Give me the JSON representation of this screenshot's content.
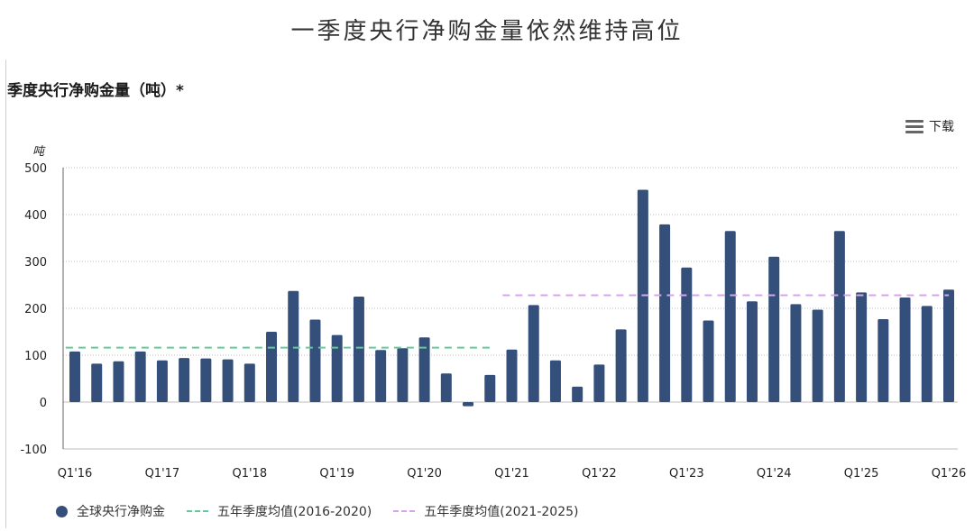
{
  "page": {
    "title": "一季度央行净购金量依然维持高位",
    "subtitle": "季度央行净购金量（吨）*",
    "download_label": "下载",
    "download_icon": "menu-icon"
  },
  "colors": {
    "bar": "#34507a",
    "avg_2016_2020": "#66c99a",
    "avg_2021_2025": "#d7a4ec",
    "grid": "#bdbdbd",
    "axis": "#666666"
  },
  "chart_data": {
    "type": "bar",
    "unit_label": "吨",
    "ylim": [
      -100,
      500
    ],
    "yticks": [
      -100,
      0,
      100,
      200,
      300,
      400,
      500
    ],
    "grid": true,
    "legend_position": "bottom-left",
    "categories": [
      "Q1'16",
      "Q2'16",
      "Q3'16",
      "Q4'16",
      "Q1'17",
      "Q2'17",
      "Q3'17",
      "Q4'17",
      "Q1'18",
      "Q2'18",
      "Q3'18",
      "Q4'18",
      "Q1'19",
      "Q2'19",
      "Q3'19",
      "Q4'19",
      "Q1'20",
      "Q2'20",
      "Q3'20",
      "Q4'20",
      "Q1'21",
      "Q2'21",
      "Q3'21",
      "Q4'21",
      "Q1'22",
      "Q2'22",
      "Q3'22",
      "Q4'22",
      "Q1'23",
      "Q2'23",
      "Q3'23",
      "Q4'23",
      "Q1'24",
      "Q2'24",
      "Q3'24",
      "Q4'24",
      "Q1'25",
      "Q2'25",
      "Q3'25",
      "Q4'25",
      "Q1'26"
    ],
    "x_tick_labels": [
      {
        "index": 0,
        "label": "Q1'16"
      },
      {
        "index": 4,
        "label": "Q1'17"
      },
      {
        "index": 8,
        "label": "Q1'18"
      },
      {
        "index": 12,
        "label": "Q1'19"
      },
      {
        "index": 16,
        "label": "Q1'20"
      },
      {
        "index": 20,
        "label": "Q1'21"
      },
      {
        "index": 24,
        "label": "Q1'22"
      },
      {
        "index": 28,
        "label": "Q1'23"
      },
      {
        "index": 32,
        "label": "Q1'24"
      },
      {
        "index": 36,
        "label": "Q1'25"
      },
      {
        "index": 40,
        "label": "Q1'26"
      }
    ],
    "series": [
      {
        "name": "全球央行净购金",
        "values": [
          108,
          82,
          87,
          108,
          89,
          94,
          93,
          91,
          82,
          150,
          237,
          176,
          143,
          225,
          111,
          115,
          138,
          61,
          -9,
          58,
          112,
          207,
          89,
          33,
          80,
          155,
          453,
          379,
          287,
          174,
          365,
          215,
          310,
          209,
          197,
          365,
          234,
          177,
          223,
          205,
          240
        ]
      }
    ],
    "reference_lines": [
      {
        "name": "五年季度均值(2016-2020)",
        "value": 116,
        "from": "Q1'16",
        "to": "Q4'20"
      },
      {
        "name": "五年季度均值(2021-2025)",
        "value": 228,
        "from": "Q1'21",
        "to": "Q1'26"
      }
    ]
  }
}
